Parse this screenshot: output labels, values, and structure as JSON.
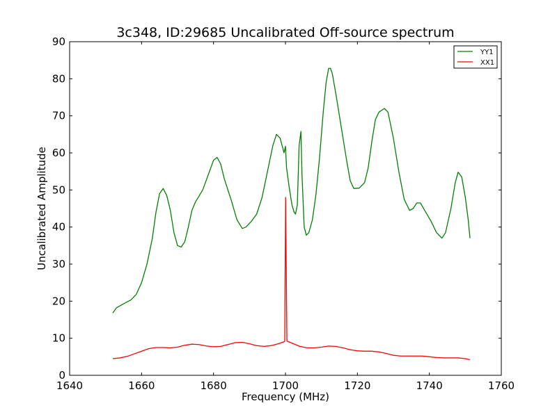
{
  "chart_data": {
    "type": "line",
    "title": "3c348, ID:29685 Uncalibrated Off-source spectrum",
    "xlabel": "Frequency (MHz)",
    "ylabel": "Uncalibrated Amplitude",
    "xlim": [
      1640,
      1760
    ],
    "ylim": [
      0,
      90
    ],
    "xticks": [
      1640,
      1660,
      1680,
      1700,
      1720,
      1740,
      1760
    ],
    "yticks": [
      0,
      10,
      20,
      30,
      40,
      50,
      60,
      70,
      80,
      90
    ],
    "grid": false,
    "legend_position": "top-right",
    "series": [
      {
        "name": "YY1",
        "color": "#008000",
        "points": [
          [
            1652,
            16.8
          ],
          [
            1653,
            18.2
          ],
          [
            1655,
            19.3
          ],
          [
            1657,
            20.3
          ],
          [
            1658.5,
            21.8
          ],
          [
            1660,
            25
          ],
          [
            1661.5,
            30
          ],
          [
            1663,
            37
          ],
          [
            1664,
            44
          ],
          [
            1665,
            49
          ],
          [
            1666,
            50.4
          ],
          [
            1667,
            48.5
          ],
          [
            1668,
            44.5
          ],
          [
            1669,
            38.5
          ],
          [
            1670,
            35
          ],
          [
            1671,
            34.6
          ],
          [
            1672,
            36
          ],
          [
            1673,
            40
          ],
          [
            1674,
            44.5
          ],
          [
            1675,
            46.8
          ],
          [
            1677,
            50
          ],
          [
            1678.5,
            54
          ],
          [
            1680,
            58
          ],
          [
            1681,
            58.8
          ],
          [
            1682,
            57
          ],
          [
            1683,
            53
          ],
          [
            1685,
            47
          ],
          [
            1686.5,
            42
          ],
          [
            1688,
            39.6
          ],
          [
            1689,
            40
          ],
          [
            1690.5,
            41.5
          ],
          [
            1692,
            43.5
          ],
          [
            1693.5,
            48
          ],
          [
            1695,
            55
          ],
          [
            1696.5,
            62
          ],
          [
            1697.5,
            65
          ],
          [
            1698.5,
            64
          ],
          [
            1699.2,
            61.5
          ],
          [
            1699.6,
            60
          ],
          [
            1700,
            61.8
          ],
          [
            1700.3,
            56
          ],
          [
            1701,
            51
          ],
          [
            1701.8,
            46
          ],
          [
            1702.4,
            44
          ],
          [
            1702.8,
            43.5
          ],
          [
            1703.3,
            46
          ],
          [
            1703.8,
            62
          ],
          [
            1704.3,
            65.8
          ],
          [
            1704.6,
            54
          ],
          [
            1705.2,
            40
          ],
          [
            1705.8,
            37.8
          ],
          [
            1706.5,
            38.5
          ],
          [
            1707.5,
            42
          ],
          [
            1708.5,
            49
          ],
          [
            1709.5,
            59
          ],
          [
            1710.5,
            71
          ],
          [
            1711.3,
            79
          ],
          [
            1712,
            82.8
          ],
          [
            1712.5,
            82.8
          ],
          [
            1713,
            81.5
          ],
          [
            1714,
            76
          ],
          [
            1715.5,
            67
          ],
          [
            1717,
            58
          ],
          [
            1718,
            52.5
          ],
          [
            1719,
            50.4
          ],
          [
            1720.5,
            50.5
          ],
          [
            1722,
            52
          ],
          [
            1723,
            56
          ],
          [
            1724,
            63
          ],
          [
            1725,
            69
          ],
          [
            1726,
            71
          ],
          [
            1727.5,
            72
          ],
          [
            1728.5,
            71
          ],
          [
            1730,
            64
          ],
          [
            1731.5,
            55
          ],
          [
            1733,
            47.5
          ],
          [
            1734.5,
            44.5
          ],
          [
            1735.5,
            45
          ],
          [
            1736.5,
            46.5
          ],
          [
            1737.5,
            46.5
          ],
          [
            1739,
            44
          ],
          [
            1740.5,
            41.5
          ],
          [
            1742,
            38.5
          ],
          [
            1743.5,
            37
          ],
          [
            1744.5,
            38.5
          ],
          [
            1746,
            45
          ],
          [
            1747.2,
            52
          ],
          [
            1748,
            54.8
          ],
          [
            1749,
            53.5
          ],
          [
            1750,
            48
          ],
          [
            1750.8,
            42
          ],
          [
            1751.3,
            37
          ]
        ]
      },
      {
        "name": "XX1",
        "color": "#ff0000",
        "points": [
          [
            1652,
            4.5
          ],
          [
            1654,
            4.7
          ],
          [
            1656,
            5.1
          ],
          [
            1658,
            5.8
          ],
          [
            1660,
            6.5
          ],
          [
            1662,
            7.2
          ],
          [
            1664,
            7.5
          ],
          [
            1666,
            7.5
          ],
          [
            1668,
            7.4
          ],
          [
            1670,
            7.6
          ],
          [
            1672,
            8.1
          ],
          [
            1674,
            8.4
          ],
          [
            1676,
            8.3
          ],
          [
            1678,
            7.9
          ],
          [
            1680,
            7.7
          ],
          [
            1682,
            7.8
          ],
          [
            1684,
            8.3
          ],
          [
            1686,
            8.8
          ],
          [
            1688,
            8.9
          ],
          [
            1690,
            8.5
          ],
          [
            1692,
            8.0
          ],
          [
            1694,
            7.8
          ],
          [
            1696,
            8.0
          ],
          [
            1698,
            8.5
          ],
          [
            1699.5,
            9.0
          ],
          [
            1699.8,
            9.2
          ],
          [
            1700.05,
            48
          ],
          [
            1700.4,
            9.2
          ],
          [
            1701,
            9.0
          ],
          [
            1702,
            8.6
          ],
          [
            1704,
            7.8
          ],
          [
            1706,
            7.4
          ],
          [
            1708,
            7.4
          ],
          [
            1710,
            7.6
          ],
          [
            1712,
            7.9
          ],
          [
            1714,
            7.8
          ],
          [
            1716,
            7.4
          ],
          [
            1718,
            6.9
          ],
          [
            1720,
            6.6
          ],
          [
            1722,
            6.5
          ],
          [
            1724,
            6.5
          ],
          [
            1726,
            6.3
          ],
          [
            1728,
            5.9
          ],
          [
            1730,
            5.4
          ],
          [
            1732,
            5.2
          ],
          [
            1734,
            5.2
          ],
          [
            1736,
            5.2
          ],
          [
            1738,
            5.2
          ],
          [
            1740,
            5.0
          ],
          [
            1742,
            4.8
          ],
          [
            1744,
            4.7
          ],
          [
            1746,
            4.7
          ],
          [
            1748,
            4.7
          ],
          [
            1750,
            4.5
          ],
          [
            1751.3,
            4.2
          ]
        ]
      }
    ]
  }
}
